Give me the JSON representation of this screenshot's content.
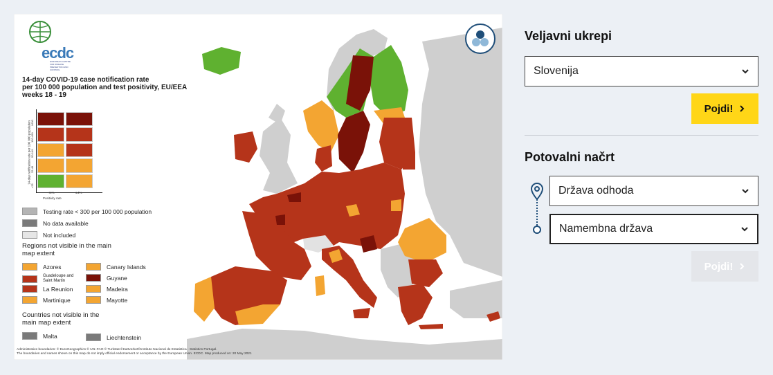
{
  "map": {
    "logo_text": "ecdc",
    "logo_subtitle": "EUROPEAN CENTRE FOR DISEASE PREVENTION AND CONTROL",
    "title_line1": "14-day COVID-19 case notification rate",
    "title_line2": "per 100 000 population and test positivity, EU/EEA",
    "title_line3": "weeks 18 - 19",
    "matrix": {
      "y_axis_label": "14-day notification rate per 100 000 population",
      "y_ticks": [
        "<25",
        "25-49",
        "50-149",
        "150-499",
        "≥500"
      ],
      "x_ticks": [
        "<4%",
        "≥4%"
      ],
      "x_label": "Positivity rate",
      "colors": [
        "#7a1208",
        "#7a1208",
        "#b5341a",
        "#b5341a",
        "#f3a532",
        "#b5341a",
        "#f3a532",
        "#f3a532",
        "#5fb130",
        "#f3a532"
      ]
    },
    "legend": {
      "testing_rate": "Testing rate < 300 per 100 000 population",
      "no_data": "No data available",
      "not_included": "Not included",
      "regions_heading": "Regions not visible in the main map extent",
      "regions": [
        {
          "name": "Azores",
          "color": "#f3a532"
        },
        {
          "name": "Canary Islands",
          "color": "#f3a532"
        },
        {
          "name": "Guadeloupe and Saint Martin",
          "color": "#b5341a"
        },
        {
          "name": "Guyane",
          "color": "#7a1208"
        },
        {
          "name": "La Reunion",
          "color": "#b5341a"
        },
        {
          "name": "Madeira",
          "color": "#f3a532"
        },
        {
          "name": "Martinique",
          "color": "#f3a532"
        },
        {
          "name": "Mayotte",
          "color": "#f3a532"
        }
      ],
      "countries_heading": "Countries not visible in the main map extent",
      "countries": [
        {
          "name": "Malta",
          "color": "#7a7a7a"
        },
        {
          "name": "Liechtenstein",
          "color": "#7a7a7a"
        }
      ],
      "swatch_colors": {
        "testing": "#b4b4b4",
        "nodata": "#7a7a7a",
        "notincluded": "#e6e6e6"
      }
    },
    "attribution_line1": "Administrative boundaries: © EuroGeographics © UN–FAO © Turkstat.©Kartverket©Instituto Nacional de Estatistica - Statistics Portugal.",
    "attribution_line2": "The boundaries and names shown on this map do not imply official endorsement or acceptance by the European Union. ECDC. Map produced on: 20 May 2021",
    "colors": {
      "dark_red": "#7a1208",
      "red": "#b5341a",
      "orange": "#f3a532",
      "green": "#5fb130",
      "grey": "#cfcfcf",
      "sea": "#ffffff"
    }
  },
  "measures": {
    "heading": "Veljavni ukrepi",
    "country_value": "Slovenija",
    "go_label": "Pojdi!"
  },
  "travel": {
    "heading": "Potovalni načrt",
    "departure_placeholder": "Država odhoda",
    "destination_placeholder": "Namembna država",
    "go_label": "Pojdi!"
  }
}
